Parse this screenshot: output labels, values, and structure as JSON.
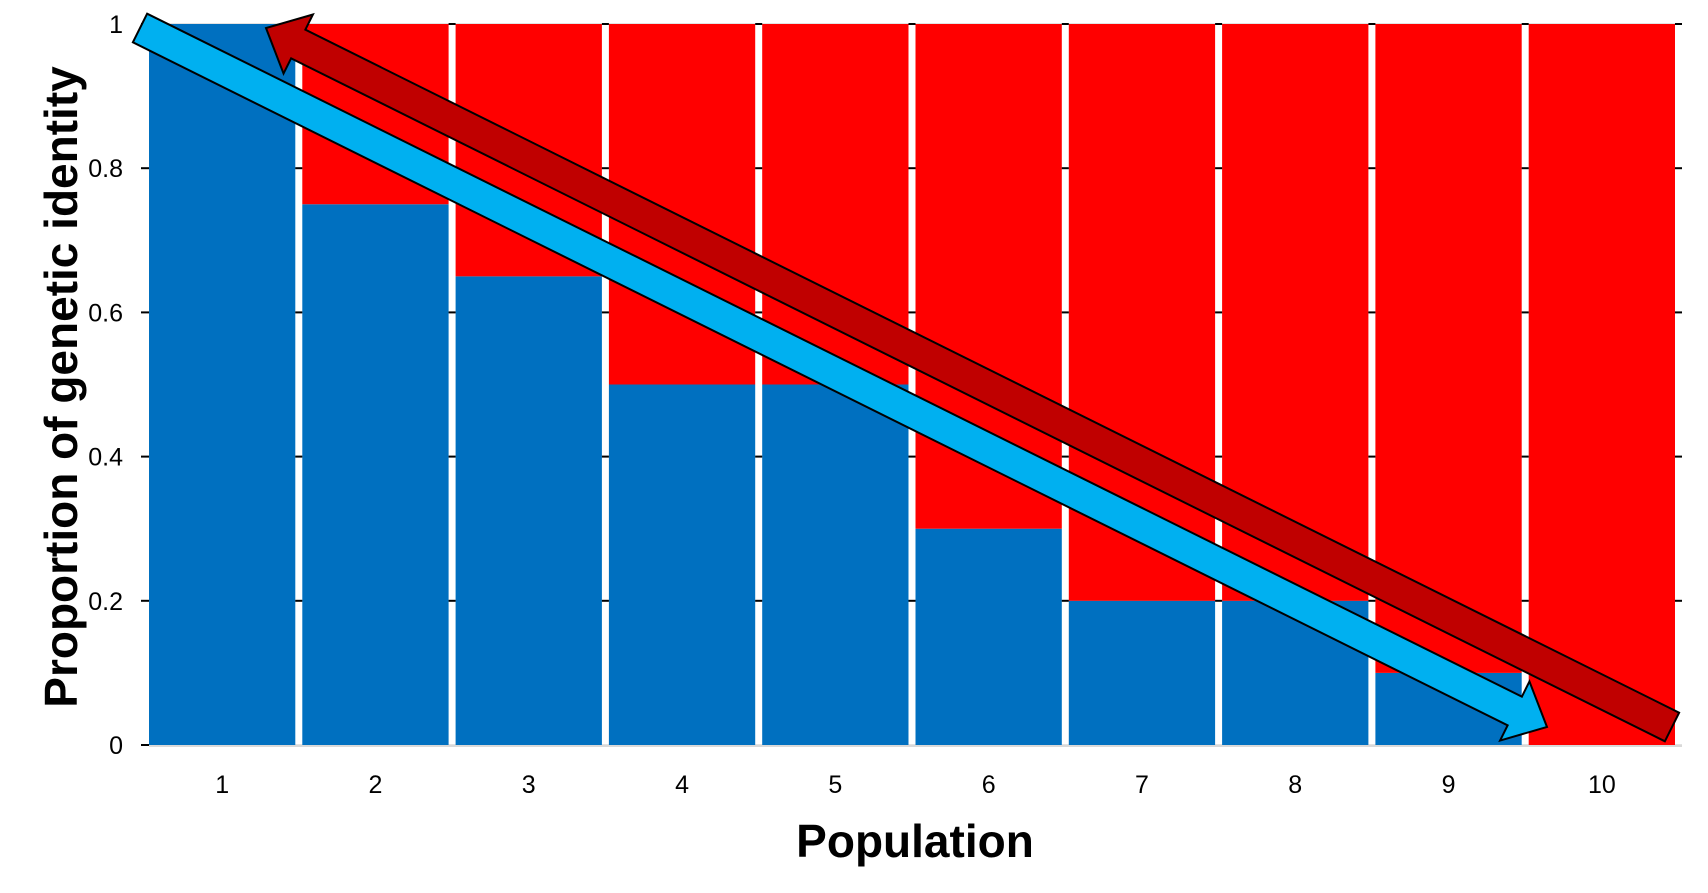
{
  "chart_data": {
    "type": "bar",
    "stacked": true,
    "title": "",
    "xlabel": "Population",
    "ylabel": "Proportion of genetic identity",
    "categories": [
      "1",
      "2",
      "3",
      "4",
      "5",
      "6",
      "7",
      "8",
      "9",
      "10"
    ],
    "series": [
      {
        "color": "#0070C0",
        "values": [
          1,
          0.75,
          0.65,
          0.5,
          0.5,
          0.3,
          0.2,
          0.2,
          0.1,
          0
        ]
      },
      {
        "color": "#FF0000",
        "values": [
          0,
          0.25,
          0.35,
          0.5,
          0.5,
          0.7,
          0.8,
          0.8,
          0.9,
          1
        ]
      }
    ],
    "ylim": [
      0,
      1
    ],
    "yticks": [
      "0",
      "0.2",
      "0.4",
      "0.6",
      "0.8",
      "1"
    ],
    "grid": true,
    "legend": "none",
    "annotations": [
      {
        "type": "arrow",
        "color": "#00B0F0",
        "direction": "from population 1 at 1 down to population 10 at 0"
      },
      {
        "type": "arrow",
        "color": "#C00000",
        "direction": "from population 10 at 0 up to population 1 at 1"
      }
    ]
  }
}
